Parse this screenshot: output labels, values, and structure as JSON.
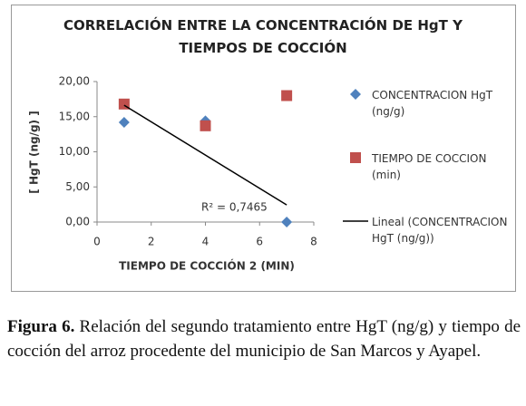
{
  "chart_data": {
    "type": "scatter",
    "title": "CORRELACIÓN ENTRE LA CONCENTRACIÓN DE HgT Y TIEMPOS DE COCCIÓN",
    "x_label": "TIEMPO DE COCCIÓN 2 (MIN)",
    "y_label": "[ HgT (ng/g) ]",
    "xlim": [
      0,
      8
    ],
    "xticks": [
      0,
      2,
      4,
      6,
      8
    ],
    "ylim": [
      0,
      20
    ],
    "yticks": [
      {
        "value": 0,
        "label": "0,00"
      },
      {
        "value": 5,
        "label": "5,00"
      },
      {
        "value": 10,
        "label": "10,00"
      },
      {
        "value": 15,
        "label": "15,00"
      },
      {
        "value": 20,
        "label": "20,00"
      }
    ],
    "series": [
      {
        "name": "CONCENTRACION HgT (ng/g)",
        "color": "#4f81bd",
        "marker": "diamond",
        "x": [
          1,
          4,
          7
        ],
        "values": [
          14.2,
          14.4,
          0
        ]
      },
      {
        "name": "TIEMPO DE COCCION (min)",
        "color": "#c0504d",
        "marker": "square",
        "x": [
          1,
          4,
          7
        ],
        "values": [
          16.8,
          13.7,
          18
        ]
      }
    ],
    "trendline": {
      "name": "Lineal (CONCENTRACION HgT (ng/g))",
      "color": "#000000",
      "annotation": "R² = 0,7465"
    }
  },
  "caption": {
    "label": "Figura 6.",
    "text": "Relación del segundo tratamiento entre HgT (ng/g) y tiempo de cocción del arroz procedente del municipio de San Marcos y Ayapel."
  }
}
